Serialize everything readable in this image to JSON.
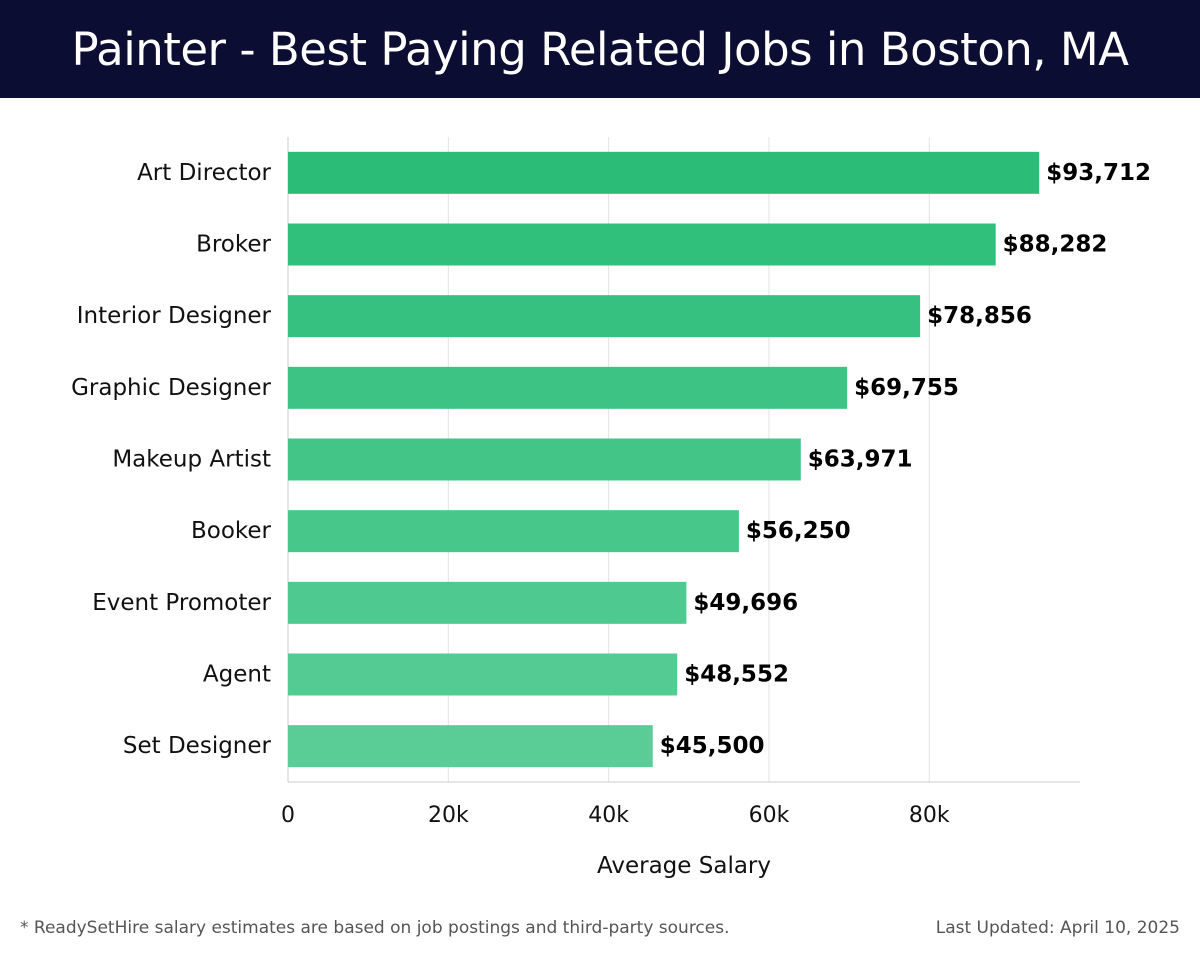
{
  "chart_data": {
    "type": "bar",
    "orientation": "horizontal",
    "title": "Painter - Best Paying Related Jobs in Boston, MA",
    "categories": [
      "Art Director",
      "Broker",
      "Interior Designer",
      "Graphic Designer",
      "Makeup Artist",
      "Booker",
      "Event Promoter",
      "Agent",
      "Set Designer"
    ],
    "values": [
      93712,
      88282,
      78856,
      69755,
      63971,
      56250,
      49696,
      48552,
      45500
    ],
    "value_labels": [
      "$93,712",
      "$88,282",
      "$78,856",
      "$69,755",
      "$63,971",
      "$56,250",
      "$49,696",
      "$48,552",
      "$45,500"
    ],
    "xlabel": "Average Salary",
    "ylabel": "",
    "xlim": [
      0,
      98800
    ],
    "xticks": [
      0,
      20000,
      40000,
      60000,
      80000
    ],
    "xtick_labels": [
      "0",
      "20k",
      "40k",
      "60k",
      "80k"
    ],
    "grid": true,
    "colors": {
      "bar_start": "#2bbd78",
      "bar_end": "#5acd97",
      "title_bg": "#0c0d33"
    }
  },
  "footer": {
    "note": "* ReadySetHire salary estimates are based on job postings and third-party sources.",
    "updated": "Last Updated: April 10, 2025"
  }
}
